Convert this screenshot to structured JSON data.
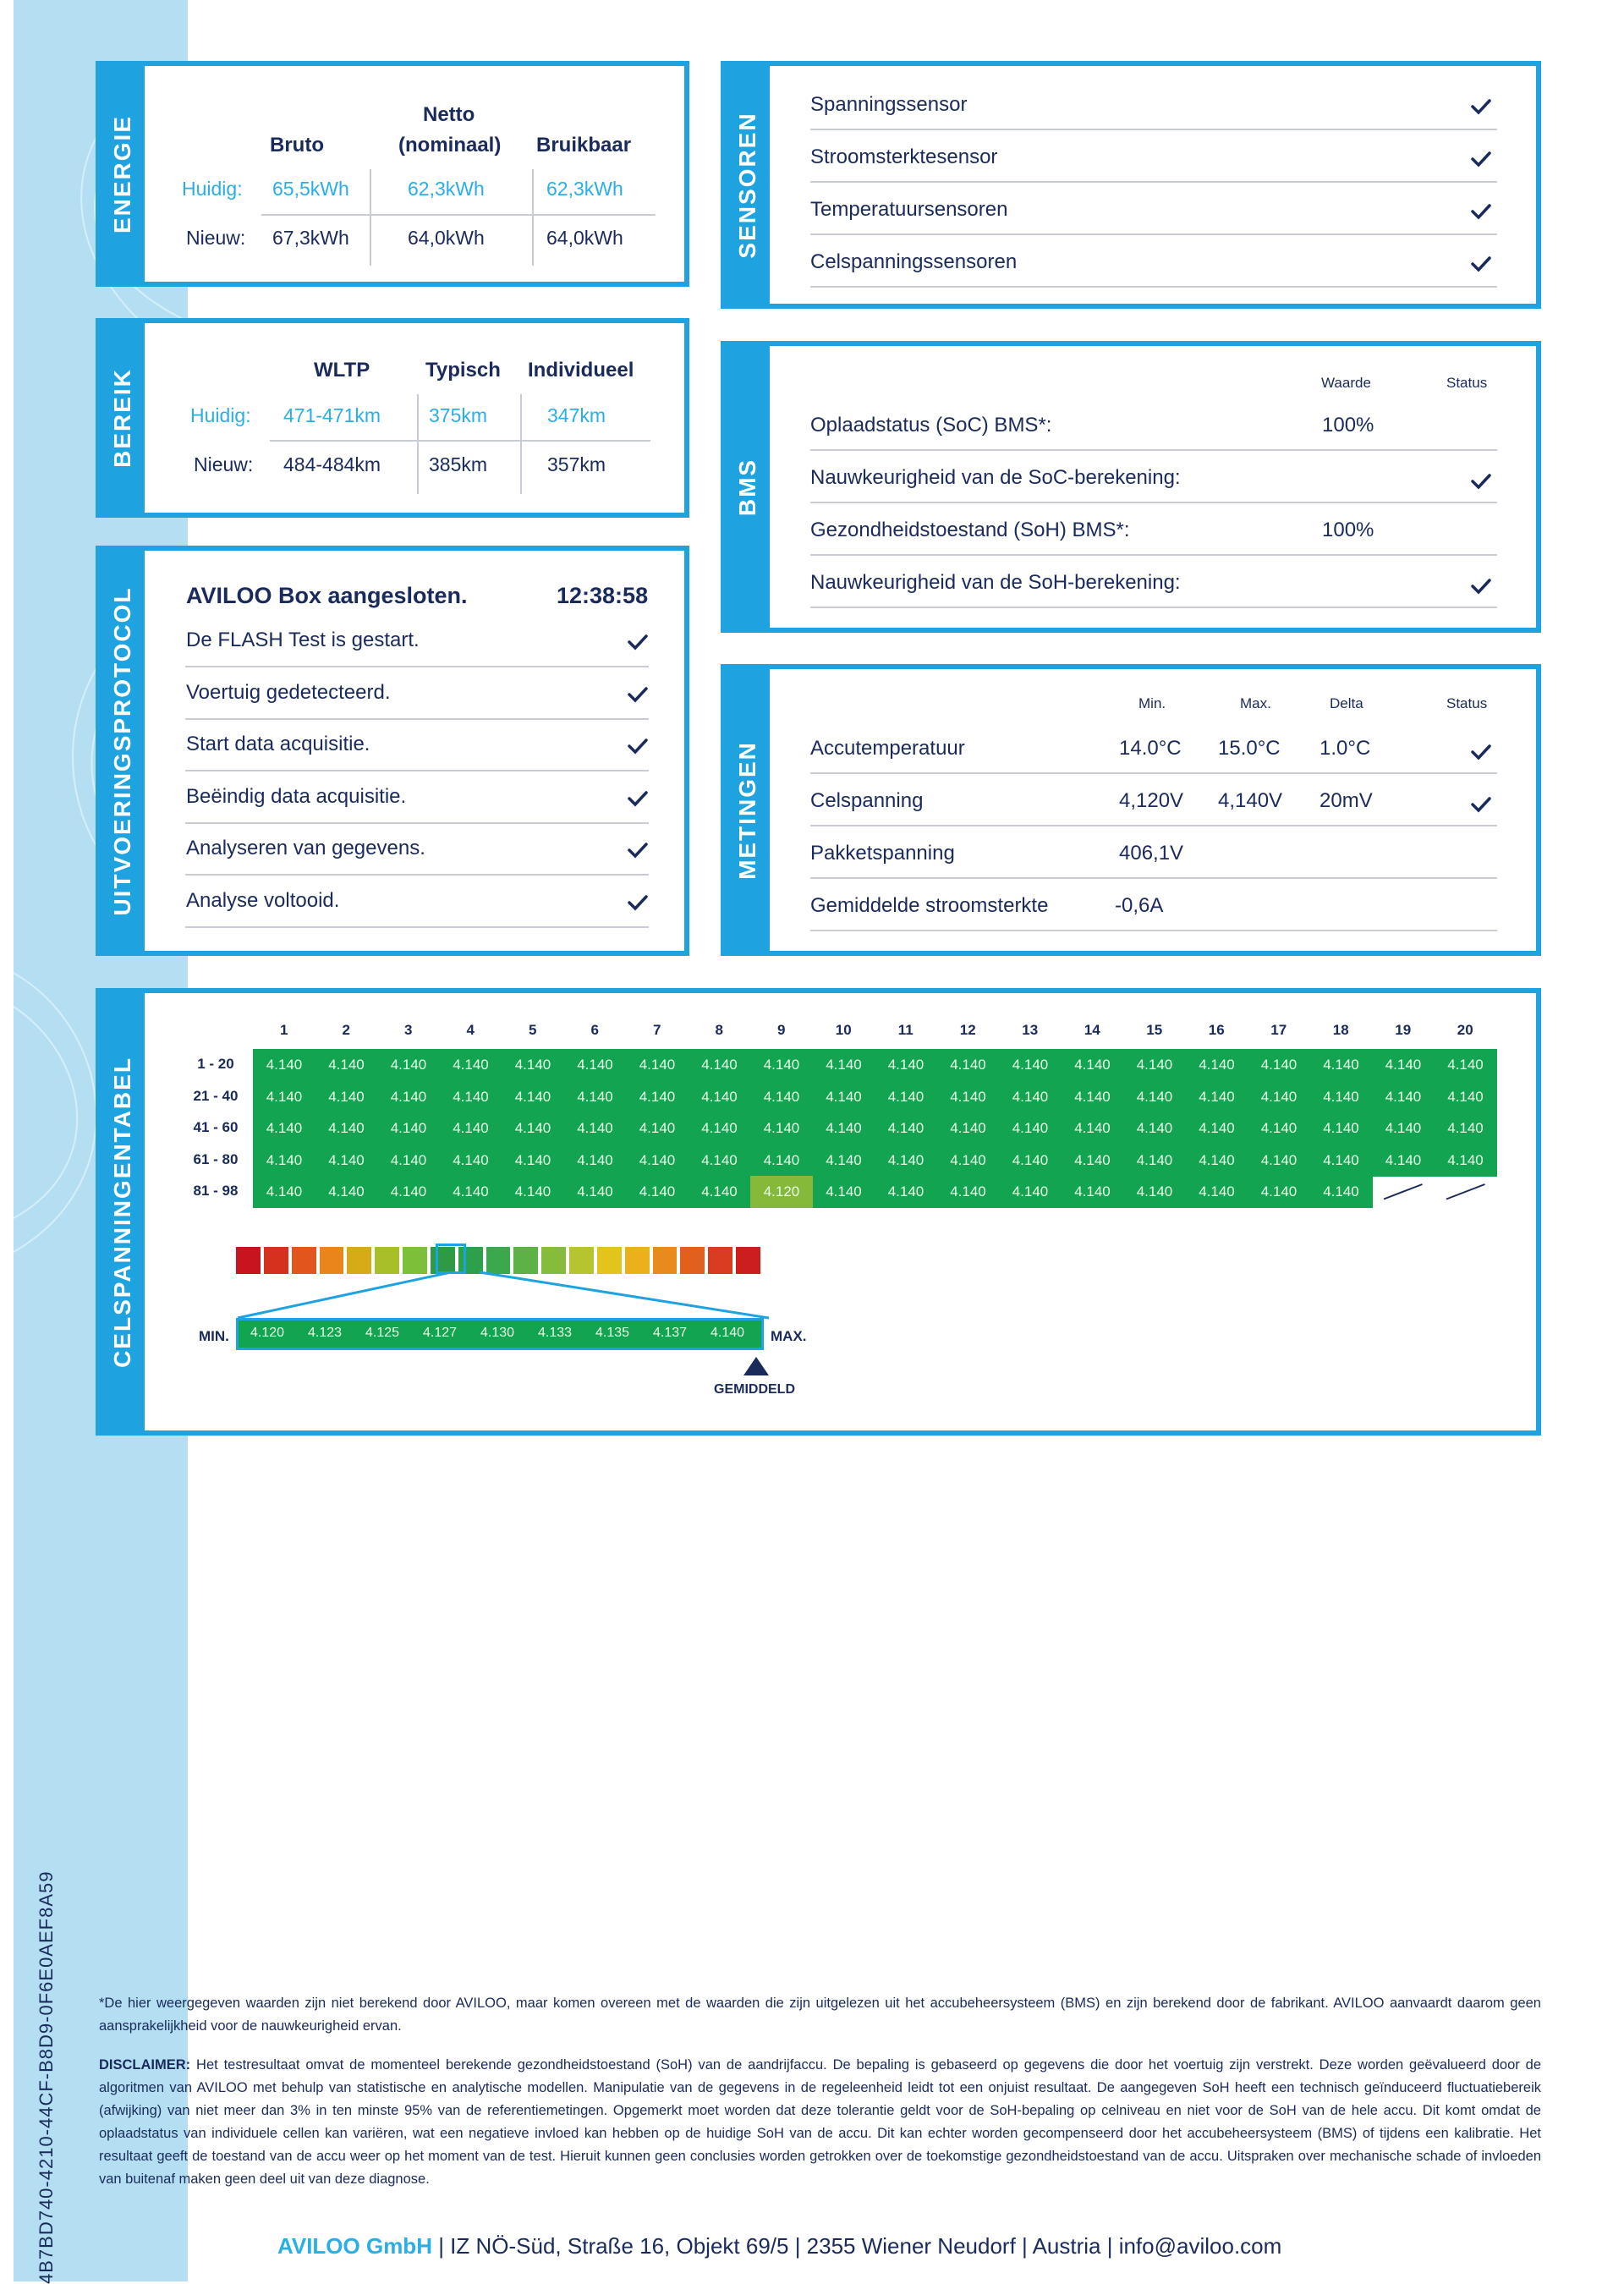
{
  "document_id": "4B7BD740-4210-44CF-B8D9-0F6E0AEF8A59",
  "energie": {
    "tab": "ENERGIE",
    "headers": [
      "Bruto",
      "Netto\n(nominaal)",
      "Bruikbaar"
    ],
    "header_netto_line1": "Netto",
    "header_netto_line2": "(nominaal)",
    "rows": [
      {
        "label": "Huidig:",
        "values": [
          "65,5kWh",
          "62,3kWh",
          "62,3kWh"
        ]
      },
      {
        "label": "Nieuw:",
        "values": [
          "67,3kWh",
          "64,0kWh",
          "64,0kWh"
        ]
      }
    ]
  },
  "bereik": {
    "tab": "BEREIK",
    "headers": [
      "WLTP",
      "Typisch",
      "Individueel"
    ],
    "rows": [
      {
        "label": "Huidig:",
        "values": [
          "471-471km",
          "375km",
          "347km"
        ]
      },
      {
        "label": "Nieuw:",
        "values": [
          "484-484km",
          "385km",
          "357km"
        ]
      }
    ]
  },
  "protocol": {
    "tab": "UITVOERINGSPROTOCOL",
    "title": "AVILOO Box aangesloten.",
    "time": "12:38:58",
    "steps": [
      "De FLASH Test is gestart.",
      "Voertuig gedetecteerd.",
      "Start data acquisitie.",
      "Beëindig data acquisitie.",
      "Analyseren van gegevens.",
      "Analyse voltooid."
    ]
  },
  "sensoren": {
    "tab": "SENSOREN",
    "items": [
      "Spanningssensor",
      "Stroomsterktesensor",
      "Temperatuursensoren",
      "Celspanningssensoren"
    ]
  },
  "bms": {
    "tab": "BMS",
    "col_waarde": "Waarde",
    "col_status": "Status",
    "rows": [
      {
        "label": "Oplaadstatus (SoC) BMS*:",
        "value": "100%",
        "check": false
      },
      {
        "label": "Nauwkeurigheid van de SoC-berekening:",
        "value": "",
        "check": true
      },
      {
        "label": "Gezondheidstoestand (SoH) BMS*:",
        "value": "100%",
        "check": false
      },
      {
        "label": "Nauwkeurigheid van de SoH-berekening:",
        "value": "",
        "check": true
      }
    ]
  },
  "metingen": {
    "tab": "METINGEN",
    "cols": [
      "Min.",
      "Max.",
      "Delta",
      "Status"
    ],
    "rows": [
      {
        "label": "Accutemperatuur",
        "min": "14.0°C",
        "max": "15.0°C",
        "delta": "1.0°C",
        "check": true
      },
      {
        "label": "Celspanning",
        "min": "4,120V",
        "max": "4,140V",
        "delta": "20mV",
        "check": true
      },
      {
        "label": "Pakketspanning",
        "min": "406,1V",
        "max": "",
        "delta": "",
        "check": false
      },
      {
        "label": "Gemiddelde stroomsterkte",
        "min": "-0,6A",
        "max": "",
        "delta": "",
        "check": false
      }
    ]
  },
  "celspanning": {
    "tab": "CELSPANNINGENTABEL",
    "col_headers": [
      "1",
      "2",
      "3",
      "4",
      "5",
      "6",
      "7",
      "8",
      "9",
      "10",
      "11",
      "12",
      "13",
      "14",
      "15",
      "16",
      "17",
      "18",
      "19",
      "20"
    ],
    "row_labels": [
      "1 - 20",
      "21 - 40",
      "41 - 60",
      "61 - 80",
      "81 - 98"
    ],
    "cell_value": "4.140",
    "low_cell_value": "4.120",
    "low_cell_index": 88,
    "cell_count": 98,
    "scale_values": [
      "4.120",
      "4.123",
      "4.125",
      "4.127",
      "4.130",
      "4.133",
      "4.135",
      "4.137",
      "4.140"
    ],
    "scale_min": "MIN.",
    "scale_max": "MAX.",
    "average_label": "GEMIDDELD",
    "gradient_colors": [
      "#c8141e",
      "#d6301e",
      "#e2561e",
      "#e8861c",
      "#d7ab18",
      "#a8bf2a",
      "#7cc03a",
      "#2f9a44",
      "#2aa14a",
      "#3aa84c",
      "#5eb244",
      "#86bc3c",
      "#b6c430",
      "#e2c41c",
      "#ecb01a",
      "#e88a1c",
      "#e2601e",
      "#d93c1e",
      "#cc1e1e"
    ]
  },
  "footnote": "*De hier weergegeven waarden zijn niet berekend door AVILOO, maar komen overeen met de waarden die zijn uitgelezen uit het accubeheersysteem (BMS) en zijn berekend door de fabrikant. AVILOO aanvaardt daarom geen aansprakelijkheid voor de nauwkeurigheid ervan.",
  "disclaimer_label": "DISCLAIMER:",
  "disclaimer": " Het testresultaat omvat de momenteel berekende gezondheidstoestand (SoH) van de aandrijfaccu. De bepaling is gebaseerd op gegevens die door het voertuig zijn verstrekt. Deze worden geëvalueerd door de algoritmen van AVILOO met behulp van statistische en analytische modellen. Manipulatie van de gegevens in de regeleenheid leidt tot een onjuist resultaat. De aangegeven SoH heeft een technisch geïnduceerd fluctuatiebereik (afwijking) van niet meer dan 3% in ten minste 95% van de referentiemetingen. Opgemerkt moet worden dat deze tolerantie geldt voor de SoH-bepaling op celniveau en niet voor de SoH van de hele accu. Dit komt omdat de oplaadstatus van individuele cellen kan variëren, wat een negatieve invloed kan hebben op de huidige SoH van de accu. Dit kan echter worden gecompenseerd door het accubeheersysteem (BMS) of tijdens een kalibratie. Het resultaat geeft de toestand van de accu weer op het moment van de test. Hieruit kunnen geen conclusies worden getrokken over de toekomstige gezondheidstoestand van de accu. Uitspraken over mechanische schade of invloeden van buitenaf maken geen deel uit van deze diagnose.",
  "footer": {
    "company": "AVILOO GmbH",
    "address": "| IZ NÖ-Süd, Straße 16, Objekt 69/5 | 2355 Wiener Neudorf | Austria | info@aviloo.com"
  },
  "colors": {
    "accent": "#1fa2e0",
    "navy": "#1a2a5a",
    "cell_green": "#12a451",
    "cell_low": "#86b83a",
    "stripe": "#b4dff3"
  }
}
